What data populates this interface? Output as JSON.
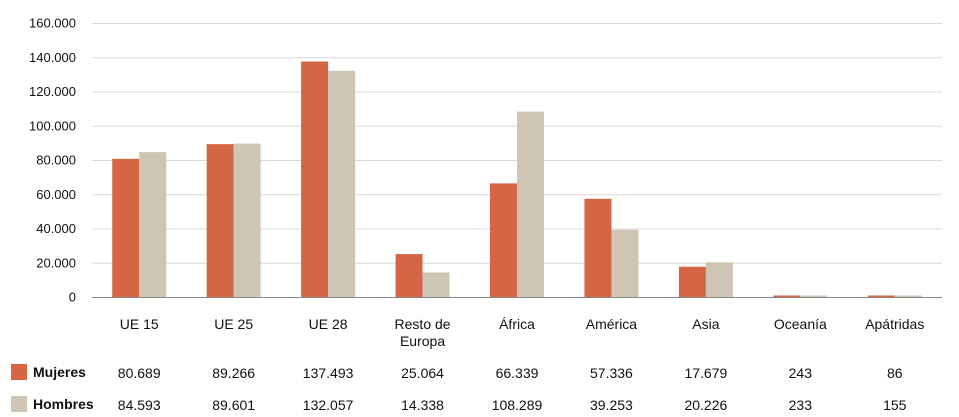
{
  "chart_data": {
    "type": "bar",
    "title": "",
    "xlabel": "",
    "ylabel": "",
    "ylim": [
      0,
      160000
    ],
    "yticks": [
      0,
      20000,
      40000,
      60000,
      80000,
      100000,
      120000,
      140000,
      160000
    ],
    "ytick_labels": [
      "0",
      "20.000",
      "40.000",
      "60.000",
      "80.000",
      "100.000",
      "120.000",
      "140.000",
      "160.000"
    ],
    "grid": true,
    "legend_position": "bottom-left, integrated into data table",
    "categories": [
      [
        "UE 15"
      ],
      [
        "UE 25"
      ],
      [
        "UE 28"
      ],
      [
        "Resto de",
        "Europa"
      ],
      [
        "África"
      ],
      [
        "América"
      ],
      [
        "Asia"
      ],
      [
        "Oceanía"
      ],
      [
        "Apátridas"
      ]
    ],
    "series": [
      {
        "name": "Mujeres",
        "color": "#D46545",
        "values": [
          80689,
          89266,
          137493,
          25064,
          66339,
          57336,
          17679,
          243,
          86
        ],
        "labels": [
          "80.689",
          "89.266",
          "137.493",
          "25.064",
          "66.339",
          "57.336",
          "17.679",
          "243",
          "86"
        ]
      },
      {
        "name": "Hombres",
        "color": "#CFC5B4",
        "values": [
          84593,
          89601,
          132057,
          14338,
          108289,
          39253,
          20226,
          233,
          155
        ],
        "labels": [
          "84.593",
          "89.601",
          "132.057",
          "14.338",
          "108.289",
          "39.253",
          "20.226",
          "233",
          "155"
        ]
      }
    ]
  }
}
